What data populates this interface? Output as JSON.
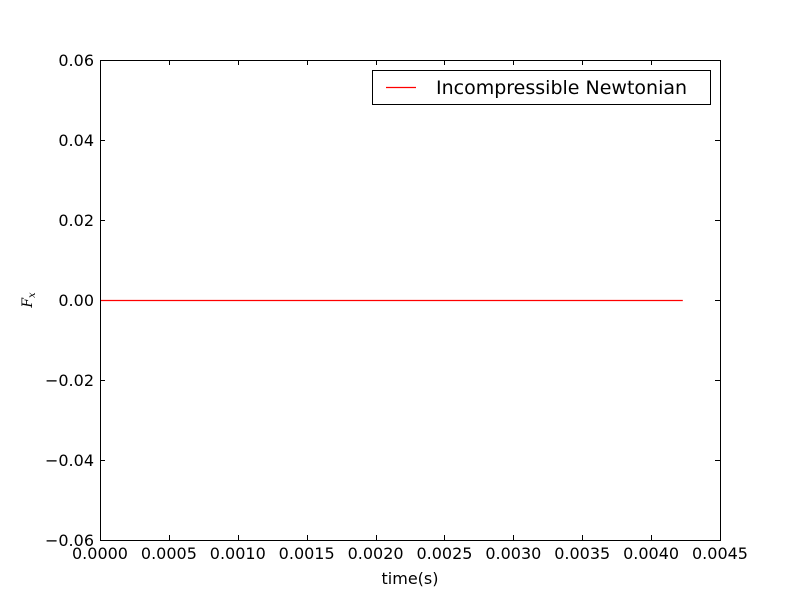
{
  "chart_data": {
    "type": "line",
    "title": "",
    "xlabel": "time(s)",
    "ylabel": "F",
    "ylabel_subscript": "x",
    "xlim": [
      0.0,
      0.0045
    ],
    "ylim": [
      -0.06,
      0.06
    ],
    "xticks": [
      0.0,
      0.0005,
      0.001,
      0.0015,
      0.002,
      0.0025,
      0.003,
      0.0035,
      0.004,
      0.0045
    ],
    "xtick_labels": [
      "0.0000",
      "0.0005",
      "0.0010",
      "0.0015",
      "0.0020",
      "0.0025",
      "0.0030",
      "0.0035",
      "0.0040",
      "0.0045"
    ],
    "yticks": [
      -0.06,
      -0.04,
      -0.02,
      0.0,
      0.02,
      0.04,
      0.06
    ],
    "ytick_labels": [
      "−0.06",
      "−0.04",
      "−0.02",
      "0.00",
      "0.02",
      "0.04",
      "0.06"
    ],
    "grid": false,
    "legend_position": "top-right",
    "series": [
      {
        "name": "Incompressible Newtonian",
        "color": "#ff0000",
        "x": [
          0.0,
          0.0005,
          0.001,
          0.0015,
          0.002,
          0.0025,
          0.003,
          0.0035,
          0.004,
          0.00423
        ],
        "y": [
          0.0,
          0.0,
          0.0,
          0.0,
          0.0,
          0.0,
          0.0,
          0.0,
          0.0,
          0.0
        ]
      }
    ]
  }
}
